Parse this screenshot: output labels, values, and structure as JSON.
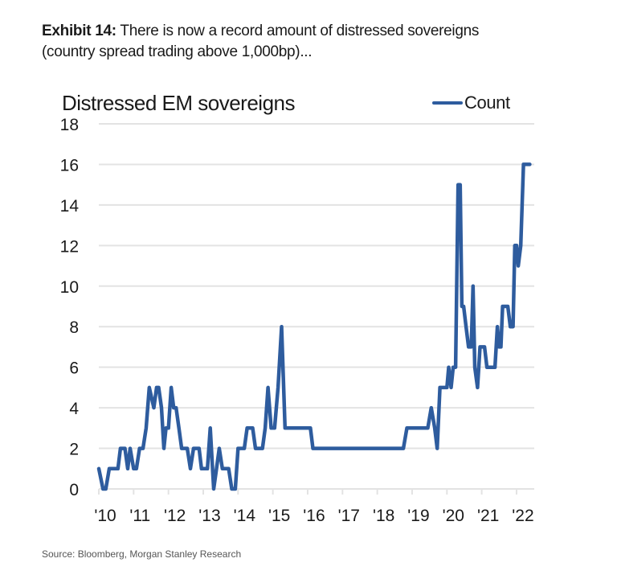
{
  "exhibit": {
    "label": "Exhibit 14:",
    "text": " There is now a record amount of distressed sovereigns",
    "line2": "(country spread trading above 1,000bp)..."
  },
  "source": "Source: Bloomberg, Morgan Stanley Research",
  "colors": {
    "line": "#2e5c9e",
    "grid": "#e3e3e3",
    "text": "#1a1a1a"
  },
  "chart_data": {
    "type": "line",
    "title": "Distressed EM sovereigns",
    "xlabel": "",
    "ylabel": "",
    "ylim": [
      0,
      18
    ],
    "xlim": [
      2010,
      2022.5
    ],
    "yticks": [
      0,
      2,
      4,
      6,
      8,
      10,
      12,
      14,
      16,
      18
    ],
    "xticks": [
      {
        "value": 2010,
        "label": "'10"
      },
      {
        "value": 2011,
        "label": "'11"
      },
      {
        "value": 2012,
        "label": "'12"
      },
      {
        "value": 2013,
        "label": "'13"
      },
      {
        "value": 2014,
        "label": "'14"
      },
      {
        "value": 2015,
        "label": "'15"
      },
      {
        "value": 2016,
        "label": "'16"
      },
      {
        "value": 2017,
        "label": "'17"
      },
      {
        "value": 2018,
        "label": "'18"
      },
      {
        "value": 2019,
        "label": "'19"
      },
      {
        "value": 2020,
        "label": "'20"
      },
      {
        "value": 2021,
        "label": "'21"
      },
      {
        "value": 2022,
        "label": "'22"
      }
    ],
    "grid": true,
    "legend_position": "top-right",
    "series": [
      {
        "name": "Count",
        "x": [
          2010.0,
          2010.12,
          2010.2,
          2010.3,
          2010.45,
          2010.55,
          2010.62,
          2010.75,
          2010.83,
          2010.9,
          2011.0,
          2011.08,
          2011.17,
          2011.27,
          2011.36,
          2011.45,
          2011.58,
          2011.66,
          2011.72,
          2011.8,
          2011.87,
          2011.93,
          2012.0,
          2012.08,
          2012.15,
          2012.22,
          2012.3,
          2012.38,
          2012.46,
          2012.54,
          2012.63,
          2012.72,
          2012.8,
          2012.88,
          2012.95,
          2013.05,
          2013.12,
          2013.2,
          2013.3,
          2013.38,
          2013.46,
          2013.55,
          2013.65,
          2013.73,
          2013.82,
          2013.92,
          2014.0,
          2014.1,
          2014.18,
          2014.26,
          2014.34,
          2014.42,
          2014.5,
          2014.6,
          2014.7,
          2014.78,
          2014.86,
          2014.95,
          2015.05,
          2015.15,
          2015.25,
          2015.35,
          2015.45,
          2015.55,
          2015.62,
          2015.7,
          2015.78,
          2015.88,
          2016.0,
          2016.08,
          2016.15,
          2016.25,
          2016.4,
          2016.6,
          2016.8,
          2016.98,
          2017.08,
          2017.3,
          2017.6,
          2017.9,
          2018.2,
          2018.5,
          2018.75,
          2018.85,
          2019.0,
          2019.2,
          2019.35,
          2019.45,
          2019.55,
          2019.65,
          2019.72,
          2019.8,
          2019.9,
          2020.0,
          2020.05,
          2020.12,
          2020.18,
          2020.25,
          2020.32,
          2020.38,
          2020.43,
          2020.48,
          2020.55,
          2020.62,
          2020.7,
          2020.75,
          2020.8,
          2020.88,
          2020.95,
          2021.0,
          2021.08,
          2021.15,
          2021.22,
          2021.3,
          2021.38,
          2021.45,
          2021.5,
          2021.55,
          2021.6,
          2021.68,
          2021.75,
          2021.82,
          2021.9,
          2021.95,
          2022.0,
          2022.05,
          2022.12,
          2022.2,
          2022.26,
          2022.32,
          2022.38
        ],
        "values": [
          1,
          0,
          0,
          1,
          1,
          1,
          2,
          2,
          1,
          2,
          1,
          1,
          2,
          2,
          3,
          5,
          4,
          5,
          5,
          4,
          2,
          3,
          3,
          5,
          4,
          4,
          3,
          2,
          2,
          2,
          1,
          2,
          2,
          2,
          1,
          1,
          1,
          3,
          0,
          1,
          2,
          1,
          1,
          1,
          0,
          0,
          2,
          2,
          2,
          3,
          3,
          3,
          2,
          2,
          2,
          3,
          5,
          3,
          3,
          5,
          8,
          3,
          3,
          3,
          3,
          3,
          3,
          3,
          3,
          3,
          2,
          2,
          2,
          2,
          2,
          2,
          2,
          2,
          2,
          2,
          2,
          2,
          2,
          3,
          3,
          3,
          3,
          3,
          4,
          3,
          2,
          5,
          5,
          5,
          6,
          5,
          6,
          6,
          15,
          15,
          9,
          9,
          8,
          7,
          7,
          10,
          6,
          5,
          7,
          7,
          7,
          6,
          6,
          6,
          6,
          8,
          7,
          7,
          9,
          9,
          9,
          8,
          8,
          12,
          12,
          11,
          12,
          16,
          16,
          16,
          16
        ]
      }
    ]
  }
}
